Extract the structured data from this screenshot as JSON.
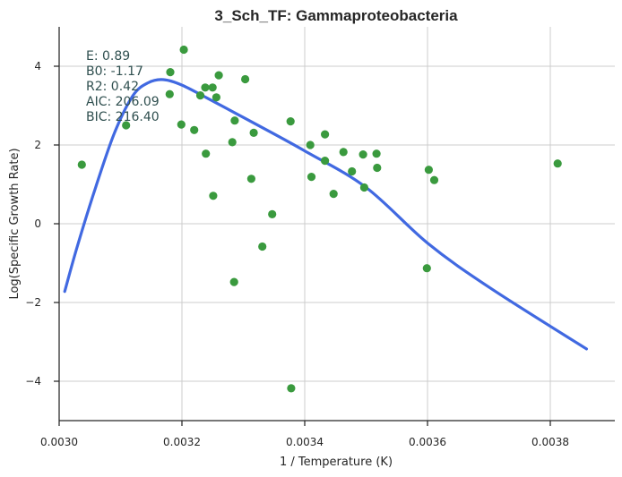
{
  "chart_data": {
    "type": "scatter",
    "title": "3_Sch_TF: Gammaproteobacteria",
    "xlabel": "1 / Temperature (K)",
    "ylabel": "Log(Specific Growth Rate)",
    "xlim": [
      0.003,
      0.0039
    ],
    "ylim": [
      -5,
      5
    ],
    "xticks": [
      0.003,
      0.0032,
      0.0034,
      0.0036,
      0.0038
    ],
    "xtick_labels": [
      "0.0030",
      "0.0032",
      "0.0034",
      "0.0036",
      "0.0038"
    ],
    "yticks": [
      -4,
      -2,
      0,
      2,
      4
    ],
    "ytick_labels": [
      "−4",
      "−2",
      "0",
      "2",
      "4"
    ],
    "grid": true,
    "stats_text": [
      "E:  0.89",
      "B0:  -1.17",
      "R2:  0.42",
      "AIC: 206.09",
      "BIC: 216.40"
    ],
    "colors": {
      "points": "#3a9a3e",
      "fit": "#4169e1",
      "stats": "#2f4f4f"
    },
    "series": [
      {
        "type": "scatter",
        "points": [
          [
            0.003037,
            1.5
          ],
          [
            0.003109,
            2.5
          ],
          [
            0.003181,
            3.85
          ],
          [
            0.00318,
            3.29
          ],
          [
            0.003199,
            2.52
          ],
          [
            0.003203,
            4.42
          ],
          [
            0.00322,
            2.38
          ],
          [
            0.00323,
            3.26
          ],
          [
            0.003238,
            3.46
          ],
          [
            0.003239,
            1.78
          ],
          [
            0.00325,
            3.46
          ],
          [
            0.003251,
            0.71
          ],
          [
            0.003256,
            3.21
          ],
          [
            0.00326,
            3.77
          ],
          [
            0.003282,
            2.07
          ],
          [
            0.003286,
            2.62
          ],
          [
            0.003285,
            -1.48
          ],
          [
            0.003303,
            3.67
          ],
          [
            0.003313,
            1.14
          ],
          [
            0.003317,
            2.31
          ],
          [
            0.003331,
            -0.58
          ],
          [
            0.003347,
            0.24
          ],
          [
            0.003377,
            2.6
          ],
          [
            0.003378,
            -4.18
          ],
          [
            0.003409,
            2.0
          ],
          [
            0.003411,
            1.19
          ],
          [
            0.003433,
            2.27
          ],
          [
            0.003433,
            1.6
          ],
          [
            0.003447,
            0.76
          ],
          [
            0.003463,
            1.82
          ],
          [
            0.003477,
            1.33
          ],
          [
            0.003495,
            1.76
          ],
          [
            0.003497,
            0.92
          ],
          [
            0.003517,
            1.78
          ],
          [
            0.003518,
            1.42
          ],
          [
            0.003599,
            -1.13
          ],
          [
            0.003602,
            1.37
          ],
          [
            0.003611,
            1.11
          ],
          [
            0.003812,
            1.53
          ]
        ]
      },
      {
        "type": "line",
        "points": [
          [
            0.003009,
            -1.72
          ],
          [
            0.00303,
            -0.55
          ],
          [
            0.00306,
            0.95
          ],
          [
            0.00309,
            2.3
          ],
          [
            0.00312,
            3.25
          ],
          [
            0.003145,
            3.58
          ],
          [
            0.00317,
            3.66
          ],
          [
            0.0032,
            3.52
          ],
          [
            0.00324,
            3.2
          ],
          [
            0.0033,
            2.7
          ],
          [
            0.0034,
            1.85
          ],
          [
            0.0035,
            0.92
          ],
          [
            0.0036,
            -0.49
          ],
          [
            0.0037,
            -1.61
          ],
          [
            0.003859,
            -3.18
          ]
        ]
      }
    ]
  }
}
